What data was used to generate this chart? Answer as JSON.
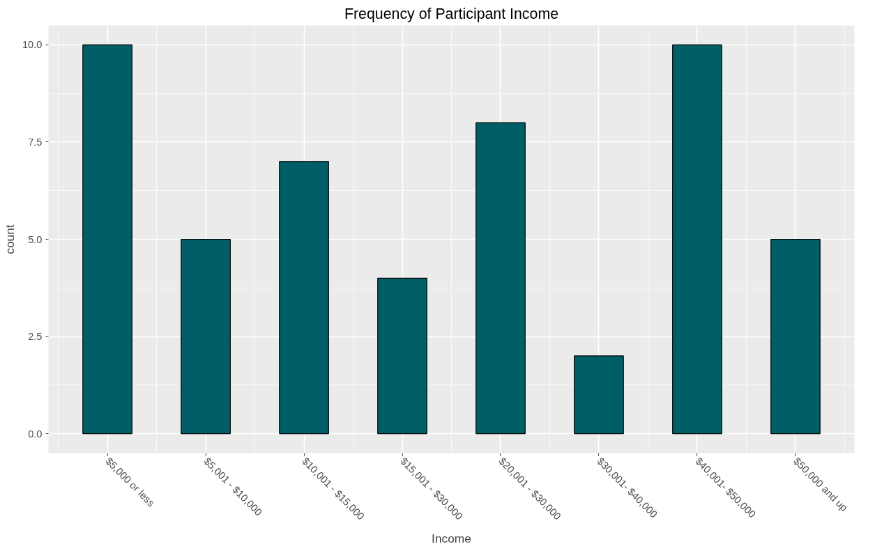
{
  "chart_data": {
    "type": "bar",
    "title": "Frequency of Participant Income",
    "xlabel": "Income",
    "ylabel": "count",
    "categories": [
      "$5,000 or less",
      "$5,001 - $10,000",
      "$10,001 - $15,000",
      "$15,001 - $30,000",
      "$20,001 - $30,000",
      "$30,001- $40,000",
      "$40,001- $50,000",
      "$50,000 and up"
    ],
    "values": [
      10,
      5,
      7,
      4,
      8,
      2,
      10,
      5
    ],
    "color": "#005f66",
    "ylim": [
      -0.5,
      10.5
    ],
    "yticks": [
      {
        "value": 0,
        "label": "0.0"
      },
      {
        "value": 2.5,
        "label": "2.5"
      },
      {
        "value": 5,
        "label": "5.0"
      },
      {
        "value": 7.5,
        "label": "7.5"
      },
      {
        "value": 10,
        "label": "10.0"
      }
    ],
    "grid": true
  }
}
